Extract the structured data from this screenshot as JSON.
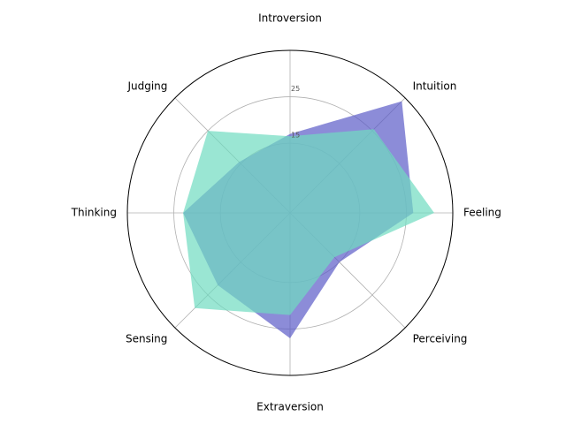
{
  "chart_data": {
    "type": "radar",
    "categories": [
      "Introversion",
      "Intuition",
      "Feeling",
      "Perceiving",
      "Extraversion",
      "Sensing",
      "Thinking",
      "Judging"
    ],
    "series": [
      {
        "color": "#5b5bc8",
        "values": [
          17,
          34,
          26.5,
          15,
          27,
          22,
          23,
          15.5
        ]
      },
      {
        "color": "#6fdcc0",
        "values": [
          16.5,
          25.5,
          31,
          13.5,
          22,
          29,
          23,
          25
        ]
      }
    ],
    "ylim": [
      0,
      35
    ],
    "yticks": [
      15,
      25
    ],
    "grid": true
  }
}
